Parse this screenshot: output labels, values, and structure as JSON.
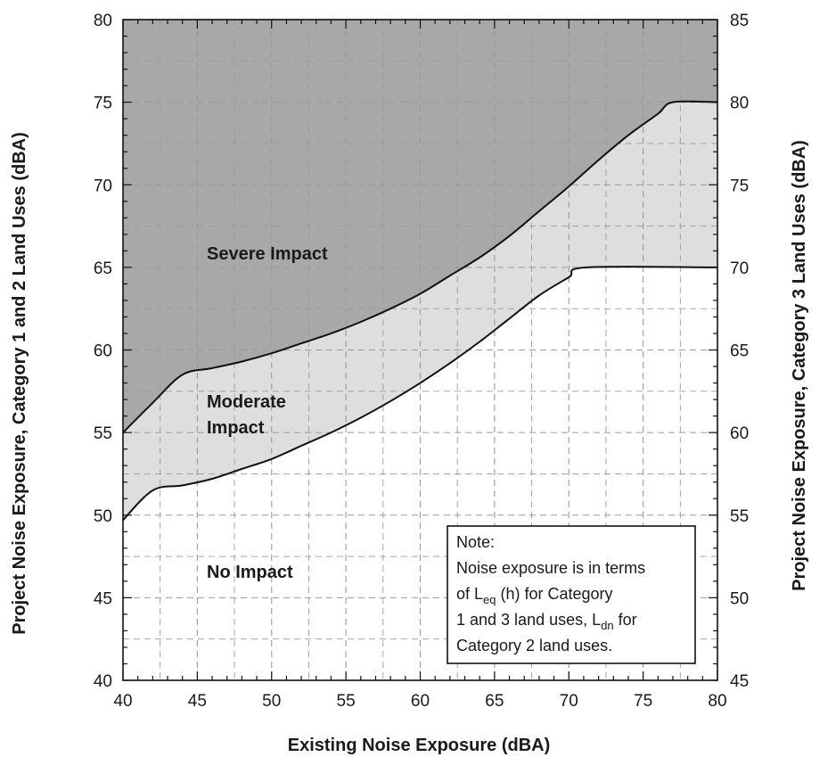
{
  "chart_data": {
    "type": "area",
    "xlabel": "Existing Noise Exposure (dBA)",
    "ylabel_left": "Project Noise Exposure, Category 1 and 2 Land Uses (dBA)",
    "ylabel_right": "Project Noise Exposure, Category 3 Land Uses (dBA)",
    "xlim": [
      40,
      80
    ],
    "ylim_left": [
      40,
      80
    ],
    "ylim_right": [
      45,
      85
    ],
    "x_ticks": [
      "40",
      "45",
      "50",
      "55",
      "60",
      "65",
      "70",
      "75",
      "80"
    ],
    "y_ticks_left": [
      "40",
      "45",
      "50",
      "55",
      "60",
      "65",
      "70",
      "75",
      "80"
    ],
    "y_ticks_right": [
      "45",
      "50",
      "55",
      "60",
      "65",
      "70",
      "75",
      "80",
      "85"
    ],
    "grid": true,
    "regions": [
      {
        "label": "Severe Impact",
        "color": "#a8a8a8"
      },
      {
        "label": "Moderate Impact",
        "color": "#dedede"
      },
      {
        "label": "No Impact",
        "color": "#ffffff"
      }
    ],
    "series": [
      {
        "key": "severe_threshold",
        "x": [
          40,
          42,
          44,
          46,
          48,
          50,
          52,
          54,
          56,
          58,
          60,
          62,
          64,
          66,
          68,
          70,
          72,
          74,
          76,
          77,
          80
        ],
        "y": [
          55.0,
          56.8,
          58.5,
          58.9,
          59.3,
          59.8,
          60.4,
          61.0,
          61.7,
          62.5,
          63.4,
          64.5,
          65.6,
          66.9,
          68.4,
          69.9,
          71.5,
          73.0,
          74.3,
          75.0,
          75.0
        ]
      },
      {
        "key": "moderate_threshold",
        "x": [
          40,
          42,
          44,
          46,
          48,
          50,
          52,
          54,
          56,
          58,
          60,
          62,
          64,
          66,
          68,
          70,
          71.2,
          80
        ],
        "y": [
          49.7,
          51.5,
          51.8,
          52.2,
          52.8,
          53.4,
          54.2,
          55.0,
          55.9,
          56.9,
          58.0,
          59.2,
          60.5,
          61.9,
          63.3,
          64.4,
          65.0,
          65.0
        ]
      }
    ],
    "note": {
      "heading": "Note:",
      "line1": "Noise exposure is in terms",
      "line2_pre": "of L",
      "line2_sub": "eq",
      "line2_post": " (h) for Category",
      "line3_pre": "1 and 3 land uses, L",
      "line3_sub": "dn",
      "line3_post": " for",
      "line4": "Category 2 land uses."
    }
  },
  "labels": {
    "severe": "Severe Impact",
    "moderate_line1": "Moderate",
    "moderate_line2": "Impact",
    "none": "No Impact"
  },
  "colors": {
    "severe_fill": "#a8a8a8",
    "moderate_fill": "#dedede",
    "grid": "#9a9a9a",
    "curve": "#111111"
  }
}
